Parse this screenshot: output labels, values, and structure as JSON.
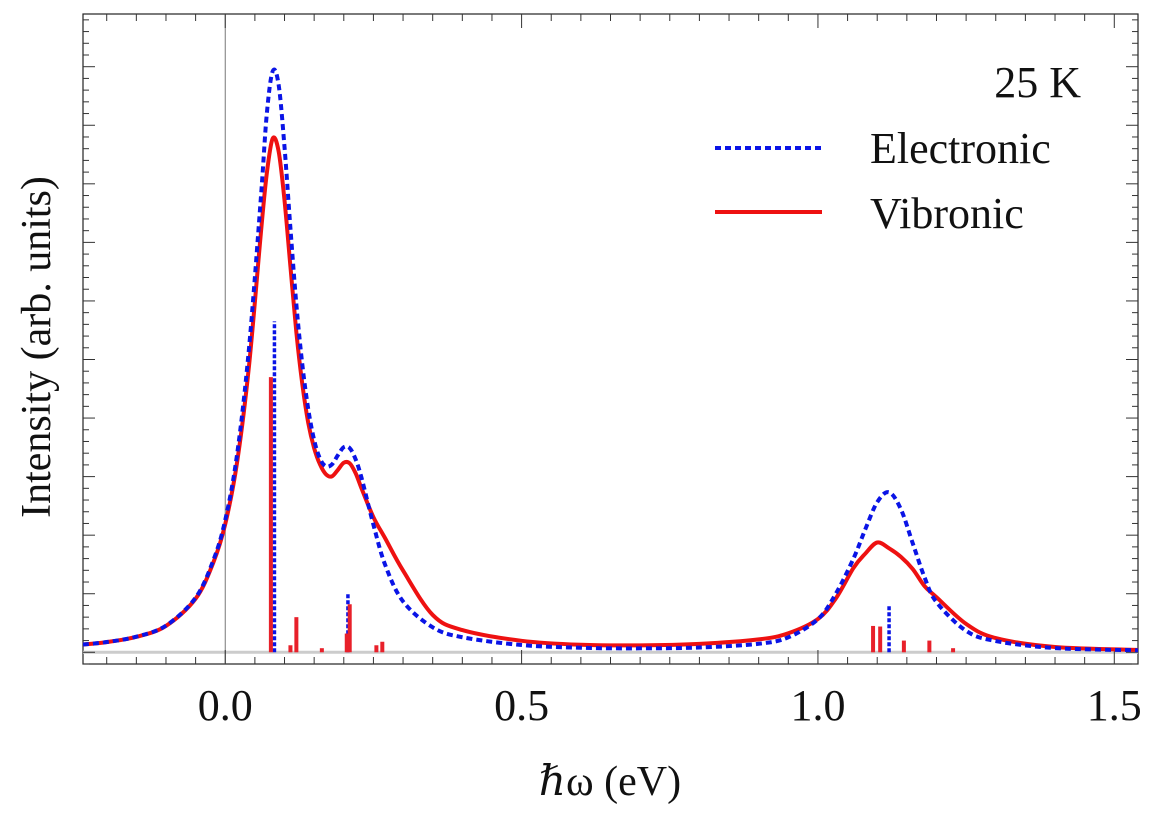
{
  "chart_data": {
    "type": "line",
    "title": "",
    "annotation": "25 K",
    "xlabel": "ℏω (eV)",
    "ylabel": "Intensity (arb. units)",
    "xlim": [
      -0.24,
      1.54
    ],
    "ylim": [
      -0.02,
      1.09
    ],
    "x_ticks": [
      0.0,
      0.5,
      1.0,
      1.5
    ],
    "x_tick_labels": [
      "0.0",
      "0.5",
      "1.0",
      "1.5"
    ],
    "legend_position": "top-right",
    "series": [
      {
        "name": "Electronic",
        "color": "#0a14e6",
        "style": "dotted",
        "points": [
          [
            -0.24,
            0.0133
          ],
          [
            -0.2,
            0.0175
          ],
          [
            -0.15,
            0.0266
          ],
          [
            -0.1,
            0.0455
          ],
          [
            -0.05,
            0.0932
          ],
          [
            -0.02,
            0.1574
          ],
          [
            0.0,
            0.2259
          ],
          [
            0.02,
            0.3381
          ],
          [
            0.04,
            0.5183
          ],
          [
            0.06,
            0.7748
          ],
          [
            0.07,
            0.9184
          ],
          [
            0.08,
            0.9921
          ],
          [
            0.09,
            0.9696
          ],
          [
            0.1,
            0.8627
          ],
          [
            0.11,
            0.7236
          ],
          [
            0.12,
            0.5938
          ],
          [
            0.13,
            0.4917
          ],
          [
            0.14,
            0.4155
          ],
          [
            0.15,
            0.3623
          ],
          [
            0.16,
            0.3302
          ],
          [
            0.17,
            0.3174
          ],
          [
            0.18,
            0.3208
          ],
          [
            0.19,
            0.3365
          ],
          [
            0.2,
            0.3503
          ],
          [
            0.21,
            0.3487
          ],
          [
            0.22,
            0.3295
          ],
          [
            0.23,
            0.2977
          ],
          [
            0.25,
            0.2178
          ],
          [
            0.27,
            0.1487
          ],
          [
            0.3,
            0.0868
          ],
          [
            0.35,
            0.0426
          ],
          [
            0.4,
            0.0257
          ],
          [
            0.5,
            0.0124
          ],
          [
            0.6,
            0.0077
          ],
          [
            0.7,
            0.0068
          ],
          [
            0.8,
            0.0082
          ],
          [
            0.9,
            0.0145
          ],
          [
            0.95,
            0.0256
          ],
          [
            1.0,
            0.0566
          ],
          [
            1.03,
            0.0997
          ],
          [
            1.06,
            0.1602
          ],
          [
            1.08,
            0.2103
          ],
          [
            1.1,
            0.2564
          ],
          [
            1.12,
            0.2733
          ],
          [
            1.14,
            0.2442
          ],
          [
            1.16,
            0.1859
          ],
          [
            1.18,
            0.1277
          ],
          [
            1.2,
            0.0856
          ],
          [
            1.25,
            0.0366
          ],
          [
            1.3,
            0.0192
          ],
          [
            1.4,
            0.0072
          ],
          [
            1.54,
            0.0034
          ]
        ]
      },
      {
        "name": "Vibronic",
        "color": "#ee1111",
        "style": "solid",
        "points": [
          [
            -0.24,
            0.0133
          ],
          [
            -0.2,
            0.0174
          ],
          [
            -0.15,
            0.0264
          ],
          [
            -0.1,
            0.0451
          ],
          [
            -0.05,
            0.0915
          ],
          [
            -0.02,
            0.1536
          ],
          [
            0.0,
            0.2189
          ],
          [
            0.02,
            0.3247
          ],
          [
            0.04,
            0.4883
          ],
          [
            0.06,
            0.7147
          ],
          [
            0.07,
            0.8169
          ],
          [
            0.08,
            0.8773
          ],
          [
            0.09,
            0.8558
          ],
          [
            0.1,
            0.7716
          ],
          [
            0.11,
            0.6584
          ],
          [
            0.12,
            0.5461
          ],
          [
            0.13,
            0.4581
          ],
          [
            0.14,
            0.392
          ],
          [
            0.15,
            0.3486
          ],
          [
            0.16,
            0.3205
          ],
          [
            0.17,
            0.3038
          ],
          [
            0.18,
            0.3004
          ],
          [
            0.19,
            0.3115
          ],
          [
            0.2,
            0.3237
          ],
          [
            0.21,
            0.3227
          ],
          [
            0.22,
            0.3057
          ],
          [
            0.23,
            0.2798
          ],
          [
            0.25,
            0.2307
          ],
          [
            0.27,
            0.1943
          ],
          [
            0.3,
            0.1395
          ],
          [
            0.35,
            0.0638
          ],
          [
            0.4,
            0.0379
          ],
          [
            0.5,
            0.0196
          ],
          [
            0.6,
            0.0128
          ],
          [
            0.7,
            0.0119
          ],
          [
            0.8,
            0.0144
          ],
          [
            0.9,
            0.022
          ],
          [
            0.95,
            0.0325
          ],
          [
            1.0,
            0.0569
          ],
          [
            1.03,
            0.0917
          ],
          [
            1.06,
            0.1441
          ],
          [
            1.08,
            0.1686
          ],
          [
            1.1,
            0.1875
          ],
          [
            1.12,
            0.1776
          ],
          [
            1.14,
            0.163
          ],
          [
            1.16,
            0.1421
          ],
          [
            1.18,
            0.1129
          ],
          [
            1.2,
            0.0941
          ],
          [
            1.25,
            0.0485
          ],
          [
            1.3,
            0.0242
          ],
          [
            1.4,
            0.0091
          ],
          [
            1.54,
            0.004
          ]
        ]
      }
    ],
    "sticks": [
      {
        "name": "Electronic",
        "color": "#0a14e6",
        "style": "dotted",
        "lines": [
          [
            0.083,
            0.565
          ],
          [
            0.207,
            0.1
          ],
          [
            1.12,
            0.08
          ]
        ]
      },
      {
        "name": "Vibronic",
        "color": "#e8202a",
        "style": "solid",
        "lines": [
          [
            0.077,
            0.47
          ],
          [
            0.11,
            0.012
          ],
          [
            0.12,
            0.06
          ],
          [
            0.163,
            0.007
          ],
          [
            0.205,
            0.032
          ],
          [
            0.21,
            0.082
          ],
          [
            0.255,
            0.012
          ],
          [
            0.265,
            0.018
          ],
          [
            1.093,
            0.045
          ],
          [
            1.105,
            0.044
          ],
          [
            1.145,
            0.02
          ],
          [
            1.188,
            0.02
          ],
          [
            1.228,
            0.007
          ]
        ]
      }
    ]
  }
}
